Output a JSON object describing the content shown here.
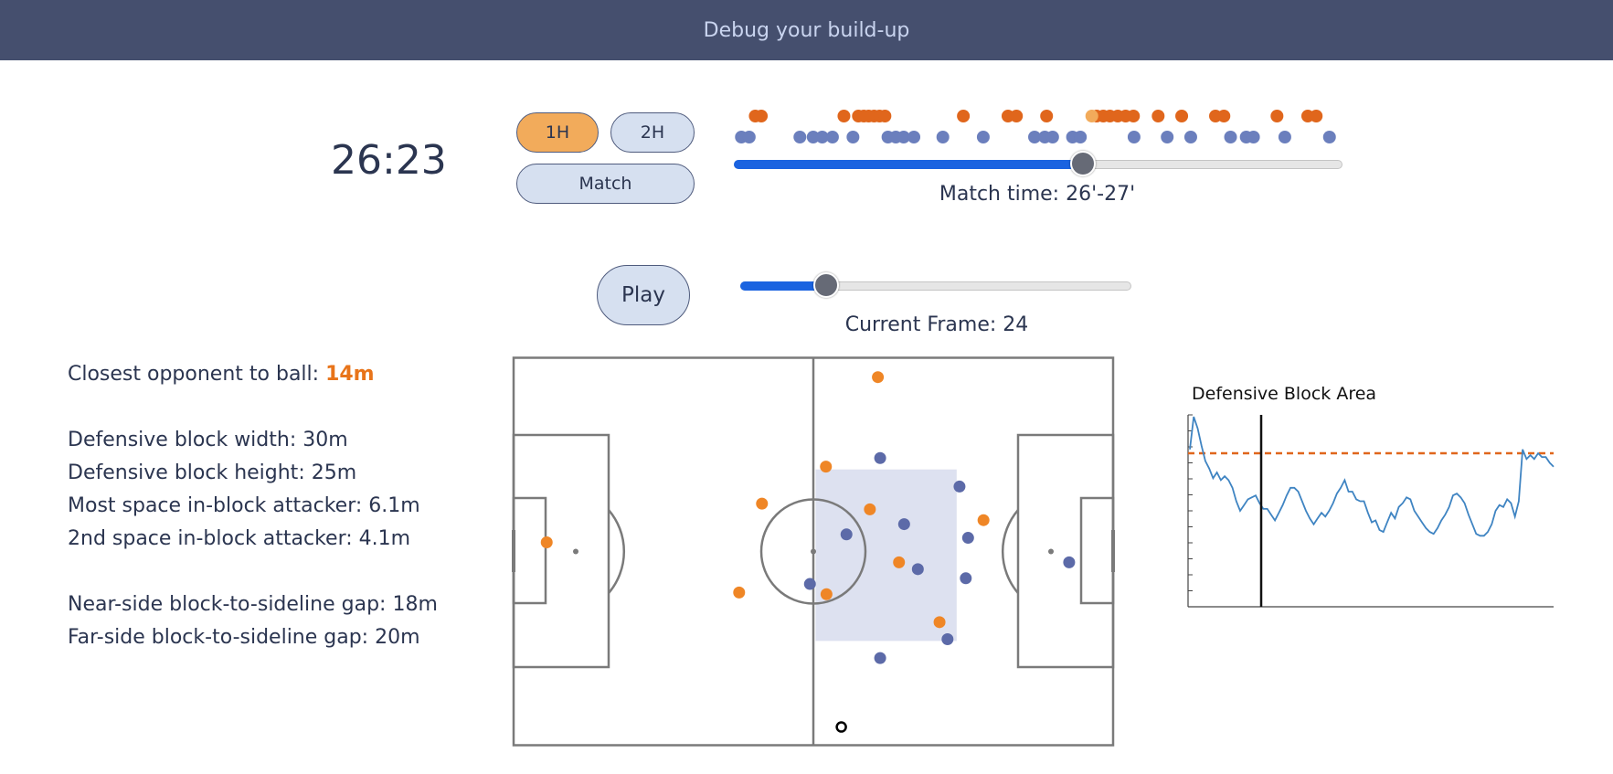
{
  "header": {
    "title": "Debug your build-up"
  },
  "clock": {
    "time": "26:23"
  },
  "period_buttons": {
    "first_half": "1H",
    "second_half": "2H",
    "match": "Match",
    "active": "1H"
  },
  "timeline": {
    "attacking_events": [
      0.034,
      0.044,
      0.181,
      0.205,
      0.214,
      0.222,
      0.231,
      0.24,
      0.249,
      0.379,
      0.453,
      0.467,
      0.517,
      0.6,
      0.611,
      0.622,
      0.635,
      0.648,
      0.661,
      0.702,
      0.741,
      0.797,
      0.811,
      0.899,
      0.95,
      0.964
    ],
    "highlighted_event": 0.592,
    "defending_events": [
      0.011,
      0.024,
      0.108,
      0.13,
      0.145,
      0.162,
      0.196,
      0.254,
      0.267,
      0.28,
      0.297,
      0.345,
      0.412,
      0.497,
      0.514,
      0.527,
      0.56,
      0.573,
      0.662,
      0.717,
      0.756,
      0.822,
      0.848,
      0.86,
      0.912,
      0.986
    ],
    "colors": {
      "attacking": "#e0661c",
      "highlighted": "#f2ab5b",
      "defending": "#6b7fbd"
    }
  },
  "match_time_slider": {
    "position": 0.574,
    "label": "Match time: 26'-27'"
  },
  "playback": {
    "play_label": "Play",
    "frame_position": 0.22,
    "frame_label": "Current Frame: 24"
  },
  "stats": {
    "closest_label": "Closest opponent to ball: ",
    "closest_value": "14m",
    "block_width": "Defensive block width: 30m",
    "block_height": "Defensive block height: 25m",
    "most_space": "Most space in-block attacker: 6.1m",
    "second_space": "2nd space in-block attacker: 4.1m",
    "near_gap": "Near-side block-to-sideline gap: 18m",
    "far_gap": "Far-side block-to-sideline gap: 20m"
  },
  "pitch": {
    "length_m": 105,
    "width_m": 68,
    "defensive_block": {
      "x0": 52.9,
      "x1": 77.6,
      "y0": 19.6,
      "y1": 49.7
    },
    "attackers": [
      [
        63.8,
        3.4
      ],
      [
        54.7,
        19.1
      ],
      [
        43.5,
        25.6
      ],
      [
        62.4,
        26.6
      ],
      [
        82.3,
        28.5
      ],
      [
        67.5,
        35.9
      ],
      [
        5.8,
        32.4
      ],
      [
        54.8,
        41.5
      ],
      [
        39.5,
        41.2
      ],
      [
        74.6,
        46.4
      ]
    ],
    "defenders": [
      [
        64.2,
        17.6
      ],
      [
        78.1,
        22.6
      ],
      [
        68.4,
        29.2
      ],
      [
        58.3,
        31.0
      ],
      [
        79.6,
        31.6
      ],
      [
        70.8,
        37.1
      ],
      [
        79.2,
        38.7
      ],
      [
        97.3,
        35.9
      ],
      [
        51.9,
        39.7
      ],
      [
        76.0,
        49.4
      ],
      [
        64.2,
        52.7
      ]
    ],
    "ball": [
      57.4,
      64.8
    ],
    "colors": {
      "attackers": "#ef8626",
      "defenders": "#5c6aa8",
      "block": "#dde1f0",
      "lines": "#7a7a7a"
    }
  },
  "block_chart": {
    "title": "Defensive Block Area",
    "current_frame_position": 0.2,
    "reference_line_fraction": 0.8,
    "series": [
      0.82,
      0.99,
      0.93,
      0.84,
      0.76,
      0.72,
      0.67,
      0.7,
      0.66,
      0.68,
      0.66,
      0.62,
      0.55,
      0.5,
      0.53,
      0.56,
      0.57,
      0.58,
      0.54,
      0.51,
      0.51,
      0.48,
      0.45,
      0.49,
      0.53,
      0.58,
      0.62,
      0.62,
      0.6,
      0.55,
      0.5,
      0.46,
      0.43,
      0.46,
      0.49,
      0.47,
      0.5,
      0.54,
      0.59,
      0.62,
      0.66,
      0.6,
      0.6,
      0.56,
      0.55,
      0.55,
      0.49,
      0.44,
      0.45,
      0.4,
      0.39,
      0.44,
      0.49,
      0.46,
      0.52,
      0.54,
      0.57,
      0.56,
      0.5,
      0.47,
      0.44,
      0.41,
      0.39,
      0.38,
      0.41,
      0.45,
      0.48,
      0.52,
      0.58,
      0.59,
      0.57,
      0.54,
      0.48,
      0.43,
      0.38,
      0.37,
      0.37,
      0.39,
      0.43,
      0.5,
      0.53,
      0.52,
      0.56,
      0.54,
      0.47,
      0.55,
      0.82,
      0.77,
      0.79,
      0.77,
      0.8,
      0.78,
      0.78,
      0.75,
      0.73
    ],
    "colors": {
      "line": "#3f84c2",
      "reference": "#e0661c",
      "marker": "#111111"
    }
  }
}
